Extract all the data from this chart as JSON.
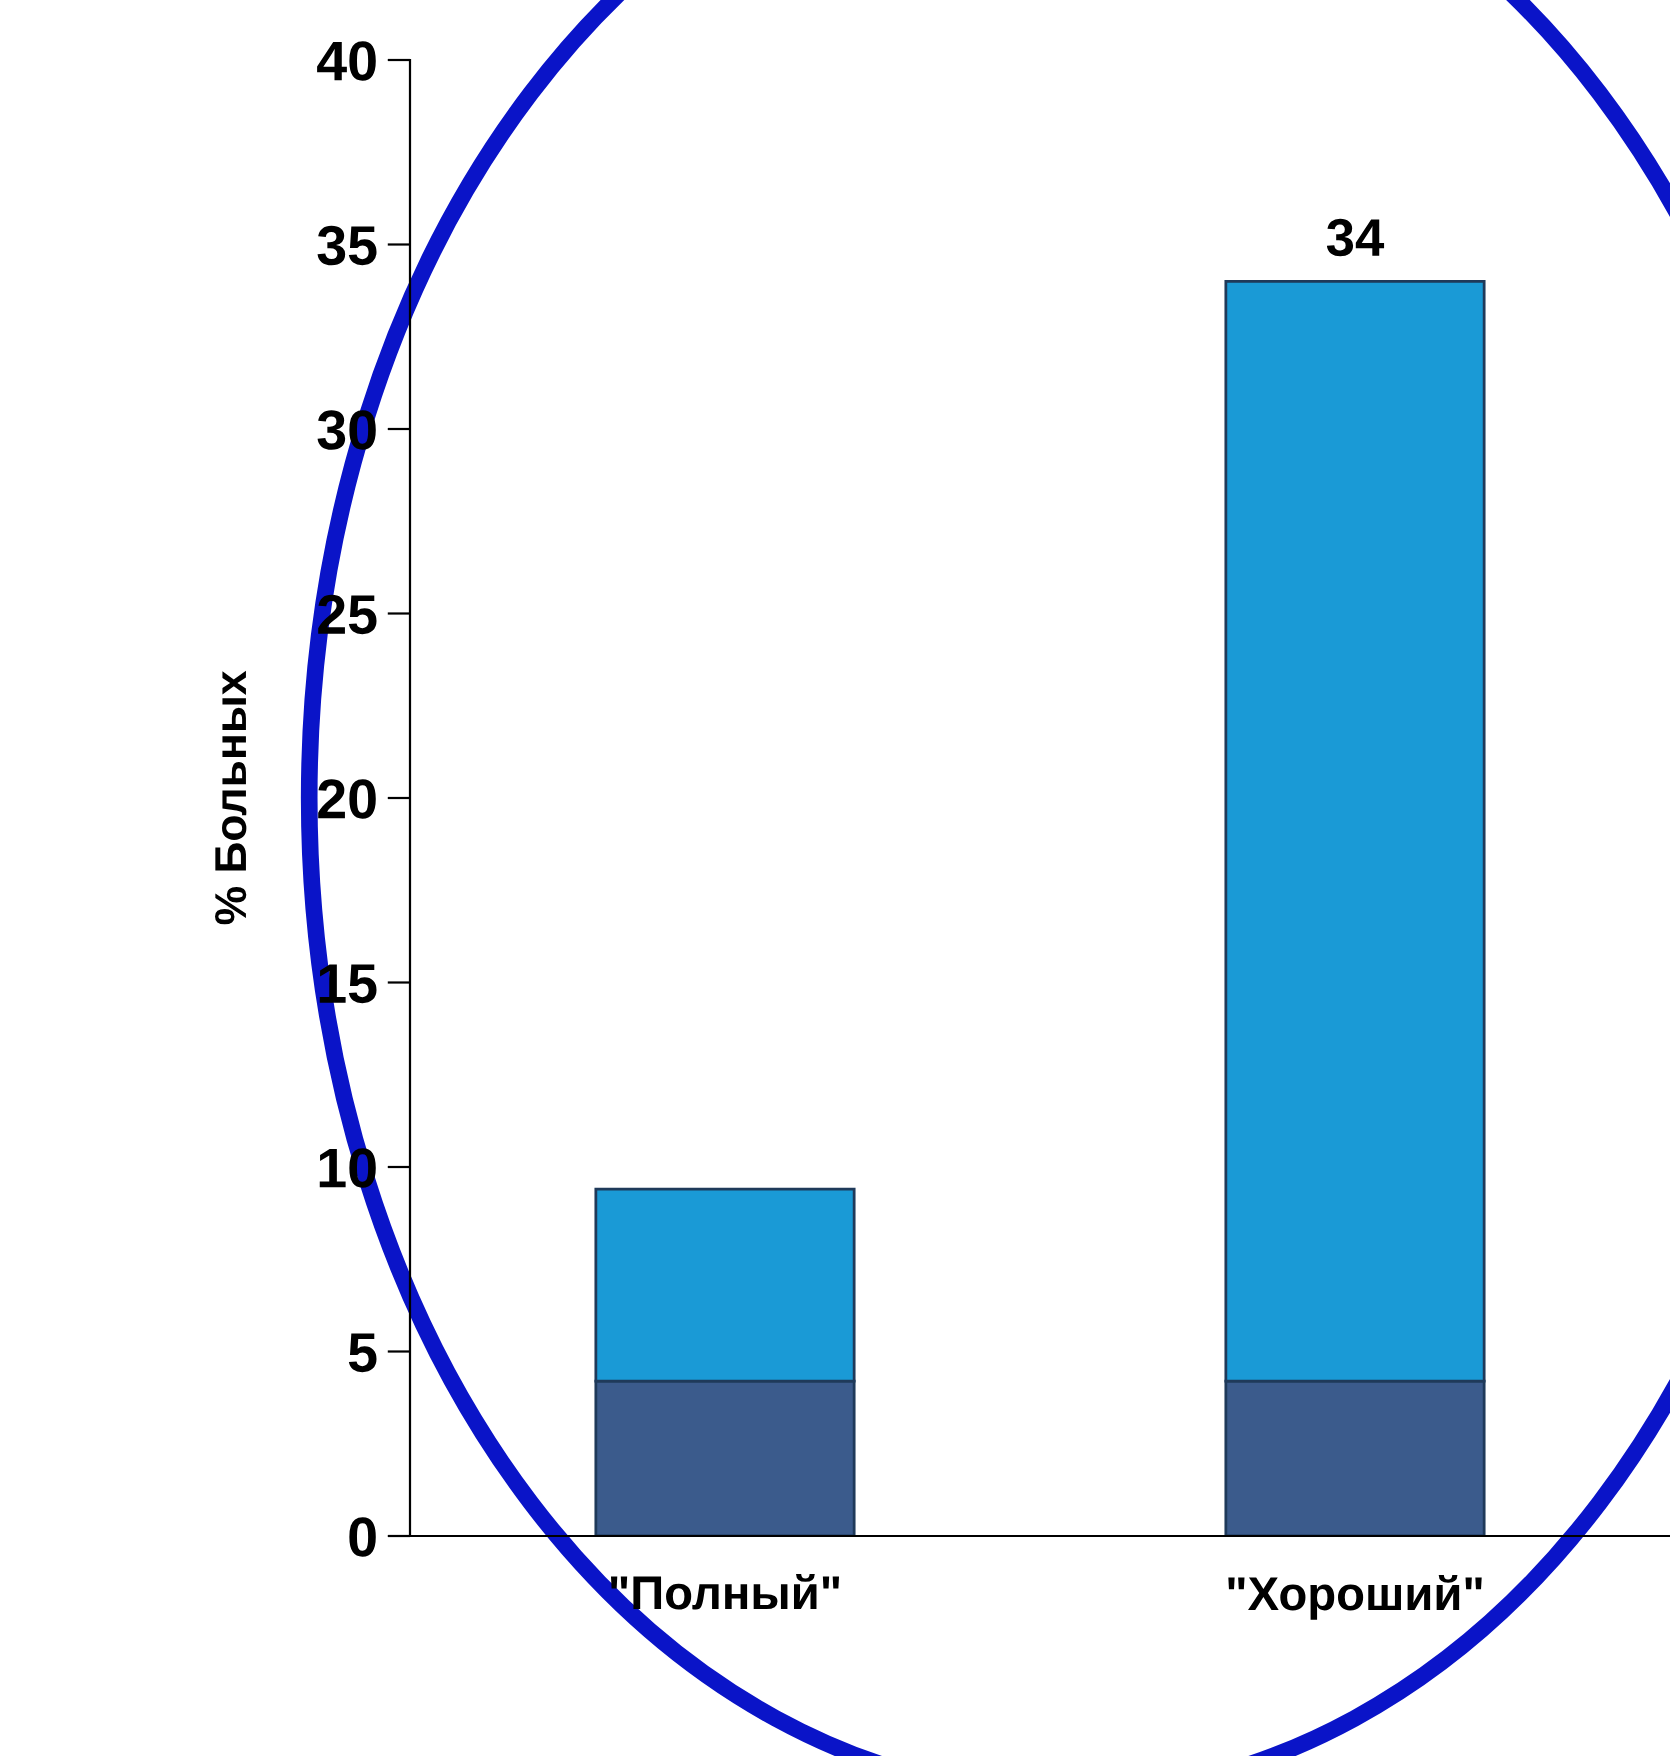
{
  "chart_data": {
    "type": "bar",
    "stacked": true,
    "ylabel": "% Больных",
    "categories": [
      "\"Полный\"",
      "\"Хороший\""
    ],
    "series": [
      {
        "color": "#3b5b8c",
        "values": [
          4.2,
          4.2
        ]
      },
      {
        "color": "#1a9ad6",
        "values": [
          5.2,
          29.8
        ]
      }
    ],
    "totals": [
      null,
      "34"
    ],
    "ylim": [
      0,
      40
    ],
    "yticks": [
      0,
      5,
      10,
      15,
      20,
      25,
      30,
      35,
      40
    ],
    "grid": false,
    "legend": false
  }
}
